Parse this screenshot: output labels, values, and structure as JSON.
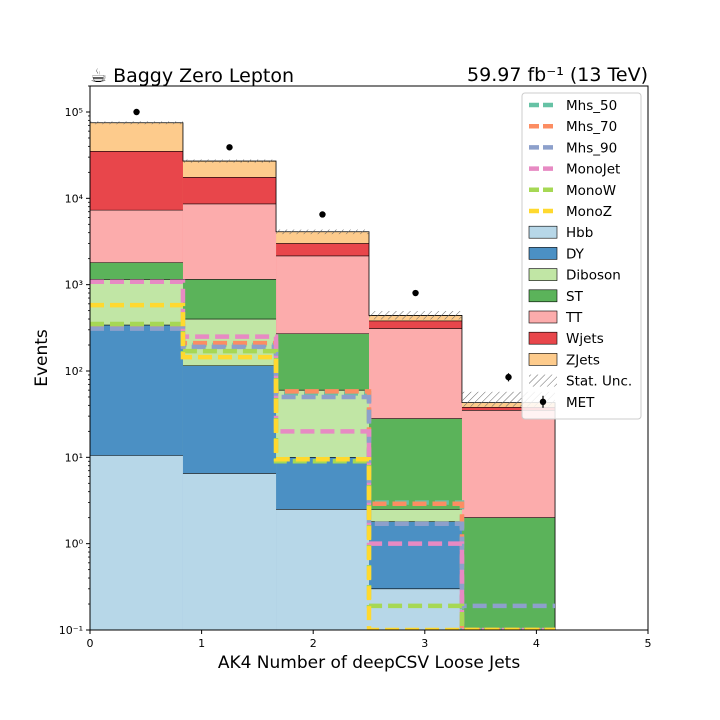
{
  "chart_data": {
    "type": "bar",
    "stacked_histogram": true,
    "title_left": "☕ Baggy Zero Lepton",
    "title_right": "59.97 fb⁻¹ (13 TeV)",
    "xlabel": "AK4 Number of deepCSV Loose Jets",
    "ylabel": "Events",
    "xlim": [
      0,
      5
    ],
    "ylim": [
      0.1,
      200000
    ],
    "yscale": "log",
    "xticks": [
      "0",
      "1",
      "2",
      "3",
      "4",
      "5"
    ],
    "yticks": [
      "10⁻¹",
      "10⁰",
      "10¹",
      "10²",
      "10³",
      "10⁴",
      "10⁵"
    ],
    "bin_edges": [
      0,
      0.833,
      1.667,
      2.5,
      3.333,
      4.167
    ],
    "legend_position": "top-right",
    "stack": [
      {
        "name": "Hbb",
        "color": "#b7d7e8",
        "values": [
          10.5,
          6.5,
          2.5,
          0.3,
          0
        ]
      },
      {
        "name": "DY",
        "color": "#4b90c4",
        "values": [
          340,
          115,
          10,
          1.8,
          0
        ]
      },
      {
        "name": "Diboson",
        "color": "#c1e6a5",
        "values": [
          1150,
          400,
          60,
          2.5,
          0
        ]
      },
      {
        "name": "ST",
        "color": "#5bb35a",
        "values": [
          1800,
          1150,
          270,
          28,
          2
        ]
      },
      {
        "name": "TT",
        "color": "#fcacac",
        "values": [
          7300,
          8600,
          2150,
          310,
          35
        ]
      },
      {
        "name": "Wjets",
        "color": "#e8464b",
        "values": [
          35000,
          17500,
          3000,
          380,
          38
        ]
      },
      {
        "name": "ZJets",
        "color": "#fdcb8c",
        "values": [
          75000,
          27000,
          4100,
          440,
          43
        ]
      }
    ],
    "signals": [
      {
        "name": "Mhs_50",
        "color": "#66c2a5",
        "values": [
          320,
          200,
          55,
          3.0,
          0.1
        ]
      },
      {
        "name": "Mhs_70",
        "color": "#fc8d62",
        "values": [
          330,
          210,
          58,
          2.9,
          0.1
        ]
      },
      {
        "name": "Mhs_90",
        "color": "#8da0cb",
        "values": [
          310,
          190,
          50,
          1.7,
          0.19
        ]
      },
      {
        "name": "MonoJet",
        "color": "#e78ac3",
        "values": [
          1080,
          250,
          20,
          1.0,
          0.1
        ]
      },
      {
        "name": "MonoW",
        "color": "#a6d854",
        "values": [
          350,
          170,
          9,
          0.19,
          0.1
        ]
      },
      {
        "name": "MonoZ",
        "color": "#ffd92f",
        "values": [
          580,
          145,
          9.5,
          0.1,
          0.1
        ]
      }
    ],
    "data": {
      "name": "MET",
      "x": [
        0.417,
        1.25,
        2.083,
        2.917,
        3.75
      ],
      "y": [
        100000,
        39000,
        6500,
        800,
        85
      ]
    },
    "stat_unc_label": "Stat. Unc."
  }
}
